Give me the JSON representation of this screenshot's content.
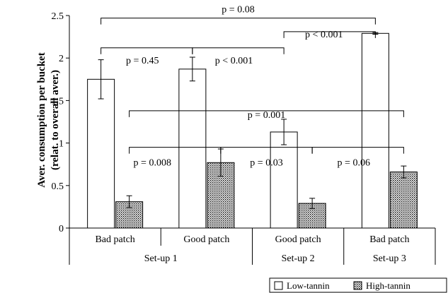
{
  "chart_data": {
    "type": "bar",
    "ylabel_line1": "Aver. consumption per bucket",
    "ylabel_line2": "(relat. to overall aver.)",
    "ylim": [
      0,
      2.5
    ],
    "yticks": [
      0,
      0.5,
      1,
      1.5,
      2,
      2.5
    ],
    "ytick_labels": [
      "0",
      "0.5",
      "1",
      "1.5",
      "2",
      "2.5"
    ],
    "categories": [
      "Bad patch",
      "Good patch",
      "Good patch",
      "Bad patch"
    ],
    "groups": [
      {
        "label": "Set-up 1",
        "span": [
          0,
          1
        ]
      },
      {
        "label": "Set-up 2",
        "span": [
          2,
          2
        ]
      },
      {
        "label": "Set-up 3",
        "span": [
          3,
          3
        ]
      }
    ],
    "series": [
      {
        "name": "Low-tannin",
        "values": [
          1.75,
          1.87,
          1.13,
          2.29
        ],
        "errors": [
          0.23,
          0.14,
          0.15,
          0.01
        ],
        "fill": "#ffffff",
        "pattern": "none"
      },
      {
        "name": "High-tannin",
        "values": [
          0.31,
          0.77,
          0.29,
          0.66
        ],
        "errors": [
          0.07,
          0.16,
          0.06,
          0.07
        ],
        "fill": "#ffffff",
        "pattern": "dots"
      }
    ],
    "annotations": [
      {
        "text": "p = 0.08",
        "from": [
          0,
          0
        ],
        "to": [
          3,
          0
        ],
        "level": 2.47
      },
      {
        "text": "p = 0.45",
        "from": [
          0,
          0
        ],
        "to": [
          1,
          0
        ],
        "level": 2.12
      },
      {
        "text": "p < 0.001",
        "from": [
          1,
          0
        ],
        "to": [
          2,
          0
        ],
        "level": 2.12
      },
      {
        "text": "p < 0.001",
        "from": [
          2,
          0
        ],
        "to": [
          3,
          0
        ],
        "level": 2.31
      },
      {
        "text": "p = 0.001",
        "from": [
          0,
          1
        ],
        "to": [
          3,
          1
        ],
        "level": 1.38
      },
      {
        "text": "p = 0.008",
        "from": [
          0,
          1
        ],
        "to": [
          1,
          1
        ],
        "level": 0.95
      },
      {
        "text": "p = 0.03",
        "from": [
          1,
          1
        ],
        "to": [
          2,
          1
        ],
        "level": 0.95
      },
      {
        "text": "p = 0.06",
        "from": [
          2,
          1
        ],
        "to": [
          3,
          1
        ],
        "level": 0.95
      }
    ]
  }
}
